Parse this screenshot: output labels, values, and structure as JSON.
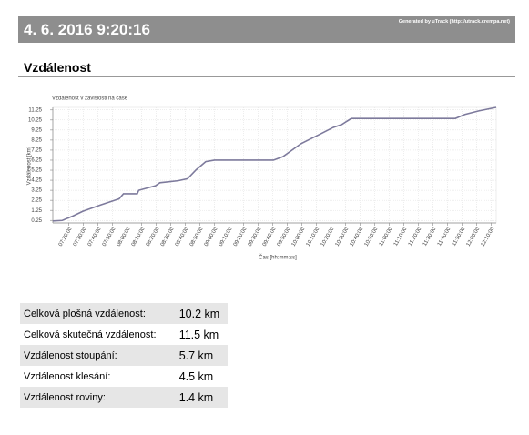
{
  "header": {
    "title": "4. 6. 2016 9:20:16",
    "generated": "Generated by uTrack (http://utrack.crempa.net)"
  },
  "section_title": "Vzdálenost",
  "chart_data": {
    "type": "line",
    "title": "Vzdálenost v závislosti na čase",
    "y_label": "Vzdálenost [km]",
    "x_label": "Čas [hh:mm:ss]",
    "color": "#7d7a9c",
    "grid": true,
    "x": [
      "07:09:00",
      "07:15:30",
      "07:23:00",
      "07:29:30",
      "07:42:00",
      "07:54:30",
      "07:57:30",
      "08:07:00",
      "08:08:00",
      "08:19:30",
      "08:22:30",
      "08:35:00",
      "08:41:30",
      "08:47:30",
      "08:54:00",
      "09:00:00",
      "09:40:30",
      "09:47:00",
      "09:59:30",
      "10:12:00",
      "10:21:30",
      "10:27:30",
      "10:34:00",
      "11:45:30",
      "11:52:00",
      "12:01:30",
      "12:13:30"
    ],
    "values": [
      0.2,
      0.25,
      0.7,
      1.15,
      1.8,
      2.4,
      2.9,
      2.9,
      3.25,
      3.7,
      4.0,
      4.2,
      4.4,
      5.3,
      6.1,
      6.25,
      6.25,
      6.6,
      7.9,
      8.8,
      9.5,
      9.8,
      10.4,
      10.4,
      10.8,
      11.15,
      11.5
    ],
    "xlim": [
      "07:09:00",
      "12:13:30"
    ],
    "xticks": [
      "07:20:00",
      "07:30:00",
      "07:40:00",
      "07:50:00",
      "08:00:00",
      "08:10:00",
      "08:20:00",
      "08:30:00",
      "08:40:00",
      "08:50:00",
      "09:00:00",
      "09:10:00",
      "09:20:00",
      "09:30:00",
      "09:40:00",
      "09:50:00",
      "10:00:00",
      "10:10:00",
      "10:20:00",
      "10:30:00",
      "10:40:00",
      "10:50:00",
      "11:00:00",
      "11:10:00",
      "11:20:00",
      "11:30:00",
      "11:40:00",
      "11:50:00",
      "12:00:00",
      "12:10:00"
    ],
    "ylim": [
      0,
      11.5
    ],
    "yticks": [
      0.25,
      1.25,
      2.25,
      3.25,
      4.25,
      5.25,
      6.25,
      7.25,
      8.25,
      9.25,
      10.25,
      11.25
    ]
  },
  "table": {
    "rows": [
      [
        "Celková plošná vzdálenost:",
        "10.2 km"
      ],
      [
        "Celková skutečná vzdálenost:",
        "11.5 km"
      ],
      [
        "Vzdálenost stoupání:",
        "5.7 km"
      ],
      [
        "Vzdálenost klesání:",
        "4.5 km"
      ],
      [
        "Vzdálenost roviny:",
        "1.4 km"
      ]
    ]
  }
}
